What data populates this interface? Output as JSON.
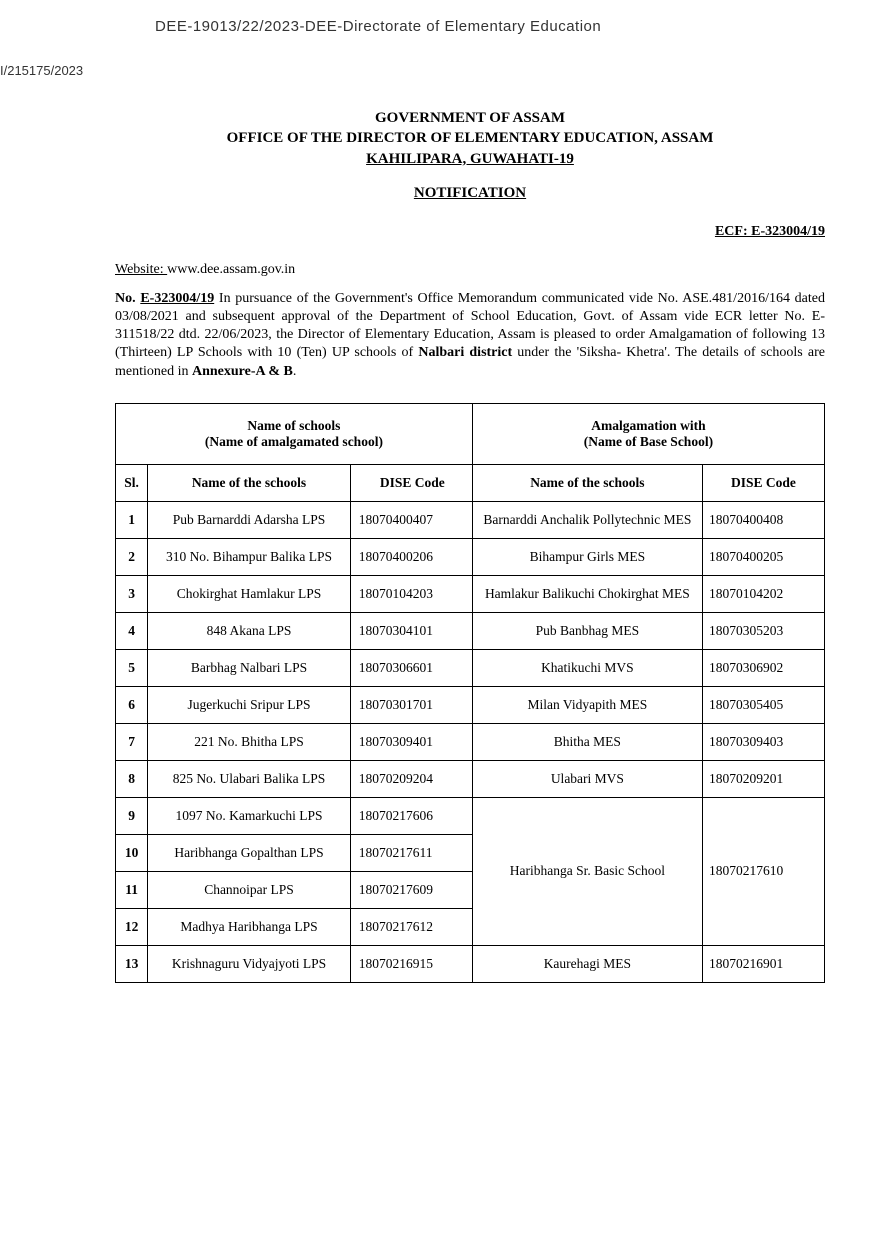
{
  "top_header": "DEE-19013/22/2023-DEE-Directorate of Elementary Education",
  "ref_number": "I/215175/2023",
  "gov_header_line1": "GOVERNMENT OF ASSAM",
  "gov_header_line2": "OFFICE OF THE DIRECTOR OF ELEMENTARY EDUCATION, ASSAM",
  "gov_header_line3": "KAHILIPARA, GUWAHATI-19",
  "notification_title": "NOTIFICATION",
  "ecf": "ECF: E-323004/19",
  "website_label": "Website: ",
  "website_value": "www.dee.assam.gov.in",
  "body": {
    "no_label": "No. ",
    "no_value": "E-323004/19",
    "text1": " In pursuance of the Government's Office Memorandum communicated vide No. ASE.481/2016/164 dated 03/08/2021 and subsequent approval of the Department of School Education, Govt. of Assam vide ECR letter No. E-311518/22 dtd. 22/06/2023, the Director of Elementary Education, Assam is pleased to order Amalgamation of  following 13 (Thirteen) LP Schools with 10 (Ten) UP schools of ",
    "district": "Nalbari district",
    "text2": " under the 'Siksha- Khetra'. The details of schools are mentioned in ",
    "annexure": "Annexure-A & B",
    "text3": "."
  },
  "table": {
    "header1_left": "Name of schools\n(Name of amalgamated school)",
    "header1_right": "Amalgamation with\n(Name of Base School)",
    "col_sl": "Sl.",
    "col_name": "Name of the schools",
    "col_dise": "DISE Code",
    "col_name2": "Name of the schools",
    "col_dise2": "DISE Code",
    "rows": [
      {
        "sl": "1",
        "name": "Pub Barnarddi Adarsha LPS",
        "dise": "18070400407",
        "name2": "Barnarddi Anchalik Pollytechnic MES",
        "dise2": "18070400408"
      },
      {
        "sl": "2",
        "name": "310 No. Bihampur Balika LPS",
        "dise": "18070400206",
        "name2": "Bihampur Girls MES",
        "dise2": "18070400205"
      },
      {
        "sl": "3",
        "name": "Chokirghat Hamlakur LPS",
        "dise": "18070104203",
        "name2": "Hamlakur Balikuchi Chokirghat MES",
        "dise2": "18070104202"
      },
      {
        "sl": "4",
        "name": "848 Akana LPS",
        "dise": "18070304101",
        "name2": "Pub Banbhag MES",
        "dise2": "18070305203"
      },
      {
        "sl": "5",
        "name": "Barbhag Nalbari LPS",
        "dise": "18070306601",
        "name2": "Khatikuchi MVS",
        "dise2": "18070306902"
      },
      {
        "sl": "6",
        "name": "Jugerkuchi Sripur LPS",
        "dise": "18070301701",
        "name2": "Milan Vidyapith MES",
        "dise2": "18070305405"
      },
      {
        "sl": "7",
        "name": "221 No. Bhitha LPS",
        "dise": "18070309401",
        "name2": "Bhitha MES",
        "dise2": "18070309403"
      },
      {
        "sl": "8",
        "name": "825 No. Ulabari Balika LPS",
        "dise": "18070209204",
        "name2": "Ulabari MVS",
        "dise2": "18070209201"
      },
      {
        "sl": "9",
        "name": "1097 No. Kamarkuchi LPS",
        "dise": "18070217606",
        "name2": "Haribhanga Sr. Basic School",
        "dise2": "18070217610",
        "rowspan": 4
      },
      {
        "sl": "10",
        "name": "Haribhanga Gopalthan LPS",
        "dise": "18070217611"
      },
      {
        "sl": "11",
        "name": "Channoipar LPS",
        "dise": "18070217609"
      },
      {
        "sl": "12",
        "name": "Madhya Haribhanga LPS",
        "dise": "18070217612"
      },
      {
        "sl": "13",
        "name": "Krishnaguru Vidyajyoti LPS",
        "dise": "18070216915",
        "name2": "Kaurehagi MES",
        "dise2": "18070216901"
      }
    ]
  }
}
